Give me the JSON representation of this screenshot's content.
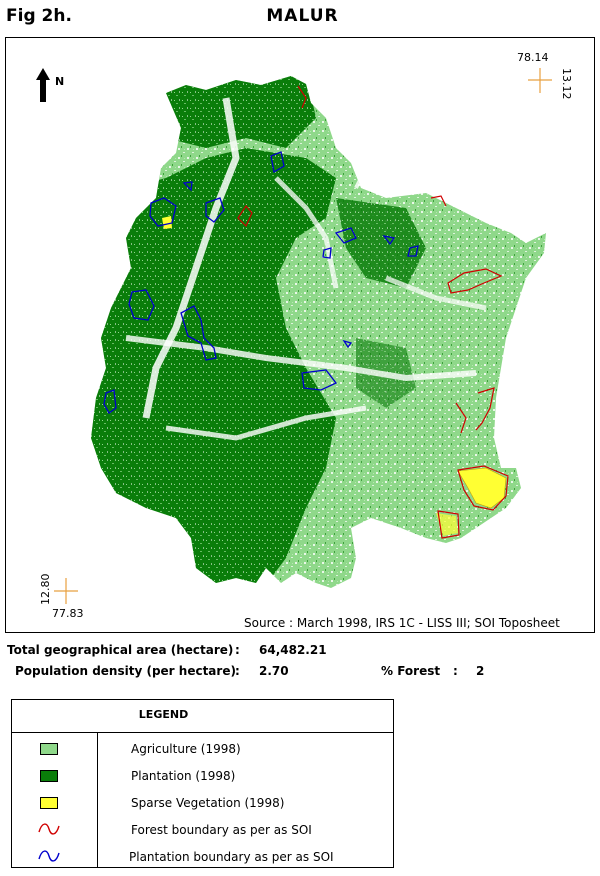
{
  "figure": {
    "label": "Fig 2h.",
    "title": "MALUR"
  },
  "map": {
    "north_label": "N",
    "coords": {
      "top_right_lon": "78.14",
      "top_right_lat": "13.12",
      "bottom_left_lat": "12.80",
      "bottom_left_lon": "77.83"
    },
    "source": "Source  :  March 1998, IRS 1C - LISS III; SOI Toposheet",
    "colors": {
      "agriculture": "#8fd88a",
      "plantation": "#0a7d0a",
      "sparse_vegetation": "#ffff33",
      "forest_boundary": "#d00000",
      "plantation_boundary": "#0000cc",
      "crosshair": "#e8a040"
    }
  },
  "stats": {
    "area_label": "Total geographical area (hectare)",
    "area_value": "64,482.21",
    "density_label": "Population density (per hectare)",
    "density_value": "2.70",
    "forest_label": "% Forest",
    "forest_value": "2",
    "separator": ":"
  },
  "legend": {
    "title": "LEGEND",
    "items": [
      {
        "label": "Agriculture (1998)",
        "kind": "swatch",
        "color": "#8fd88a"
      },
      {
        "label": "Plantation (1998)",
        "kind": "swatch",
        "color": "#0a7d0a"
      },
      {
        "label": "Sparse Vegetation (1998)",
        "kind": "swatch",
        "color": "#ffff33"
      },
      {
        "label": "Forest boundary as per as SOI",
        "kind": "curve",
        "color": "#d00000"
      },
      {
        "label": "Plantation boundary as per as SOI",
        "kind": "curve",
        "color": "#0000cc"
      }
    ]
  }
}
